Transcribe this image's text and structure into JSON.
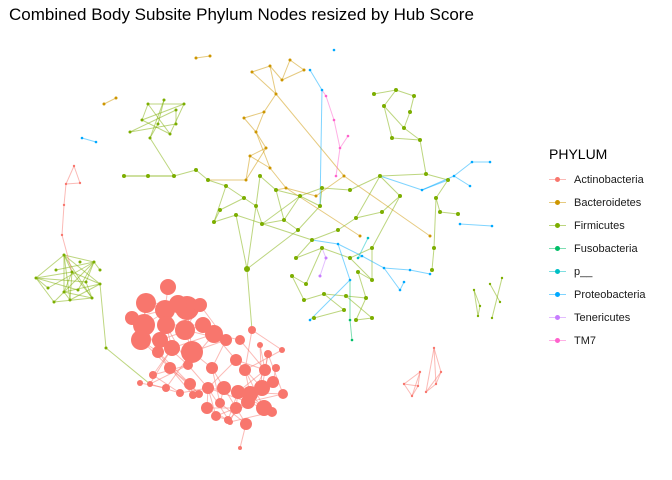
{
  "title": "Combined Body Subsite Phylum Nodes resized by Hub Score",
  "legend": {
    "title": "PHYLUM",
    "position": "right",
    "items": [
      {
        "label": "Actinobacteria",
        "color": "#F8766D"
      },
      {
        "label": "Bacteroidetes",
        "color": "#CD9600"
      },
      {
        "label": "Firmicutes",
        "color": "#7CAE00"
      },
      {
        "label": "Fusobacteria",
        "color": "#00BE67"
      },
      {
        "label": "p__",
        "color": "#00BFC4"
      },
      {
        "label": "Proteobacteria",
        "color": "#00A9FF"
      },
      {
        "label": "Tenericutes",
        "color": "#C77CFF"
      },
      {
        "label": "TM7",
        "color": "#FF61CC"
      }
    ]
  }
}
